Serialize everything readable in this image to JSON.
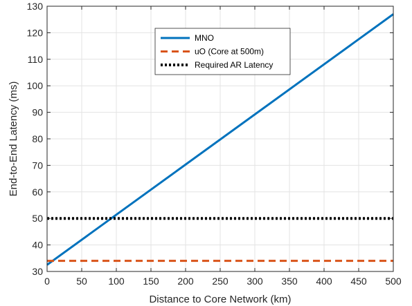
{
  "chart_data": {
    "type": "line",
    "title": "",
    "xlabel": "Distance to Core Network (km)",
    "ylabel": "End-to-End Latency (ms)",
    "xlim": [
      0,
      500
    ],
    "ylim": [
      30,
      130
    ],
    "xticks": [
      0,
      50,
      100,
      150,
      200,
      250,
      300,
      350,
      400,
      450,
      500
    ],
    "yticks": [
      30,
      40,
      50,
      60,
      70,
      80,
      90,
      100,
      110,
      120,
      130
    ],
    "grid": true,
    "legend_position": "upper-center",
    "series": [
      {
        "name": "MNO",
        "x": [
          0,
          500
        ],
        "y": [
          32.5,
          127
        ],
        "color": "#0072bd",
        "style": "solid"
      },
      {
        "name": "uO (Core at 500m)",
        "x": [
          0,
          500
        ],
        "y": [
          34,
          34
        ],
        "color": "#d95319",
        "style": "dashed"
      },
      {
        "name": "Required AR Latency",
        "x": [
          0,
          500
        ],
        "y": [
          50,
          50
        ],
        "color": "#000000",
        "style": "dotted"
      }
    ]
  }
}
